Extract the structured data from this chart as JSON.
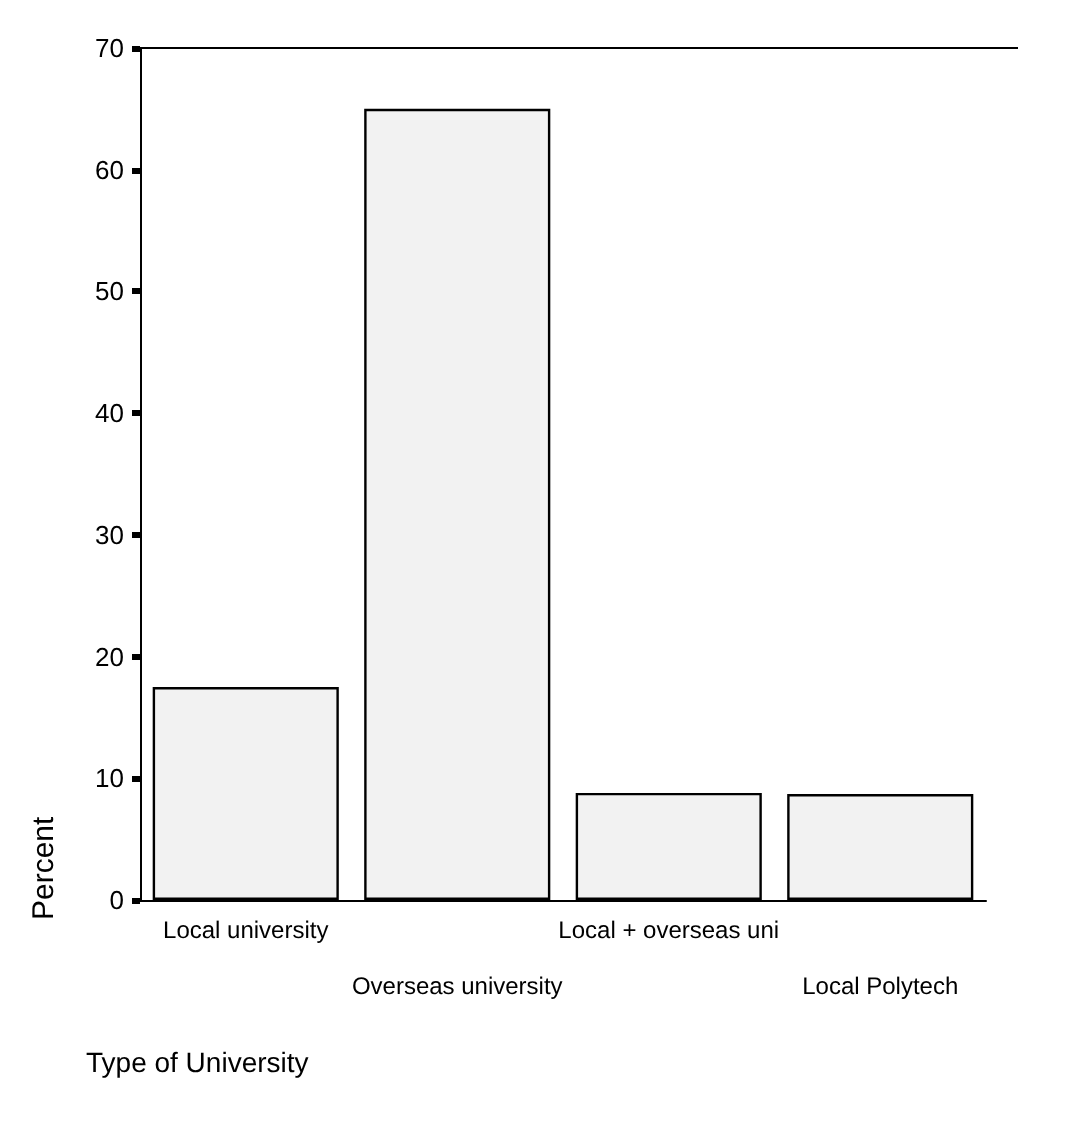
{
  "chart_data": {
    "type": "bar",
    "xlabel": "Type of University",
    "ylabel": "Percent",
    "categories": [
      "Local university",
      "Overseas university",
      "Local + overseas uni",
      "Local Polytech"
    ],
    "values": [
      17.5,
      65,
      8.8,
      8.7
    ],
    "color": "#f2f2f2",
    "ylim": [
      0,
      70
    ],
    "yticks": [
      0,
      10,
      20,
      30,
      40,
      50,
      60,
      70
    ],
    "grid": false
  }
}
